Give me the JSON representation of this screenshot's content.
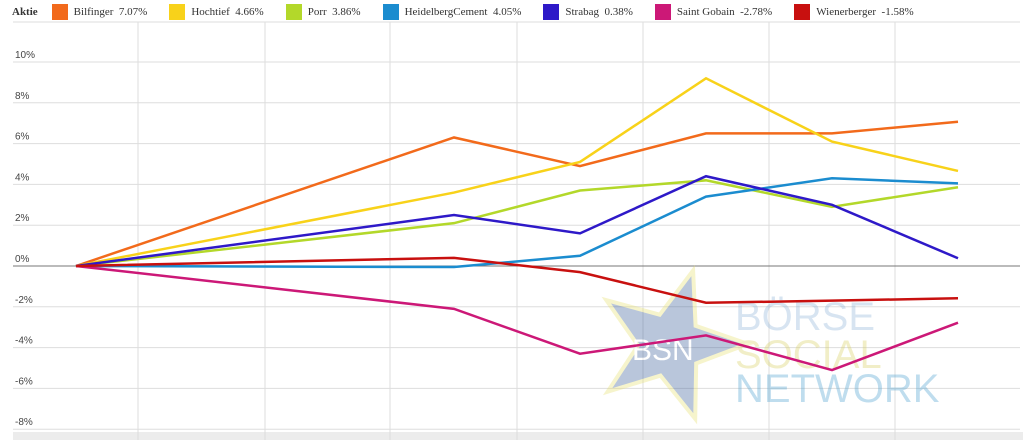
{
  "chart_data": {
    "type": "line",
    "legend_title": "Aktie",
    "legend_placement": "top",
    "ylim": [
      -8,
      11
    ],
    "yticks": [
      "10%",
      "8%",
      "6%",
      "4%",
      "2%",
      "0%",
      "-2%",
      "-4%",
      "-6%",
      "-8%"
    ],
    "ytick_values": [
      10,
      8,
      6,
      4,
      2,
      0,
      -2,
      -4,
      -6,
      -8
    ],
    "x": [
      0,
      3,
      4,
      5,
      6,
      7
    ],
    "series": [
      {
        "name": "Bilfinger",
        "label": "7.07%",
        "color": "#f26a1b",
        "values": [
          0,
          6.3,
          4.9,
          6.5,
          6.5,
          7.07
        ]
      },
      {
        "name": "Hochtief",
        "label": "4.66%",
        "color": "#f8d21a",
        "values": [
          0,
          3.6,
          5.1,
          9.2,
          6.1,
          4.66
        ]
      },
      {
        "name": "Porr",
        "label": "3.86%",
        "color": "#b3d82a",
        "values": [
          0,
          2.1,
          3.7,
          4.2,
          2.9,
          3.86
        ]
      },
      {
        "name": "HeidelbergCement",
        "label": "4.05%",
        "color": "#1b8ccf",
        "values": [
          0,
          -0.05,
          0.5,
          3.4,
          4.3,
          4.05
        ]
      },
      {
        "name": "Strabag",
        "label": "0.38%",
        "color": "#2e19c8",
        "values": [
          0,
          2.5,
          1.6,
          4.4,
          3.0,
          0.38
        ]
      },
      {
        "name": "Saint Gobain",
        "label": "-2.78%",
        "color": "#cc1877",
        "values": [
          0,
          -2.1,
          -4.3,
          -3.4,
          -5.1,
          -2.78
        ]
      },
      {
        "name": "Wienerberger",
        "label": "-1.58%",
        "color": "#c8100f",
        "values": [
          0,
          0.4,
          -0.3,
          -1.8,
          -1.7,
          -1.58
        ]
      }
    ]
  },
  "watermark": {
    "line1": "BÖRSE",
    "line2": "SOCIAL",
    "line3": "NETWORK",
    "star_text": "BSN"
  }
}
